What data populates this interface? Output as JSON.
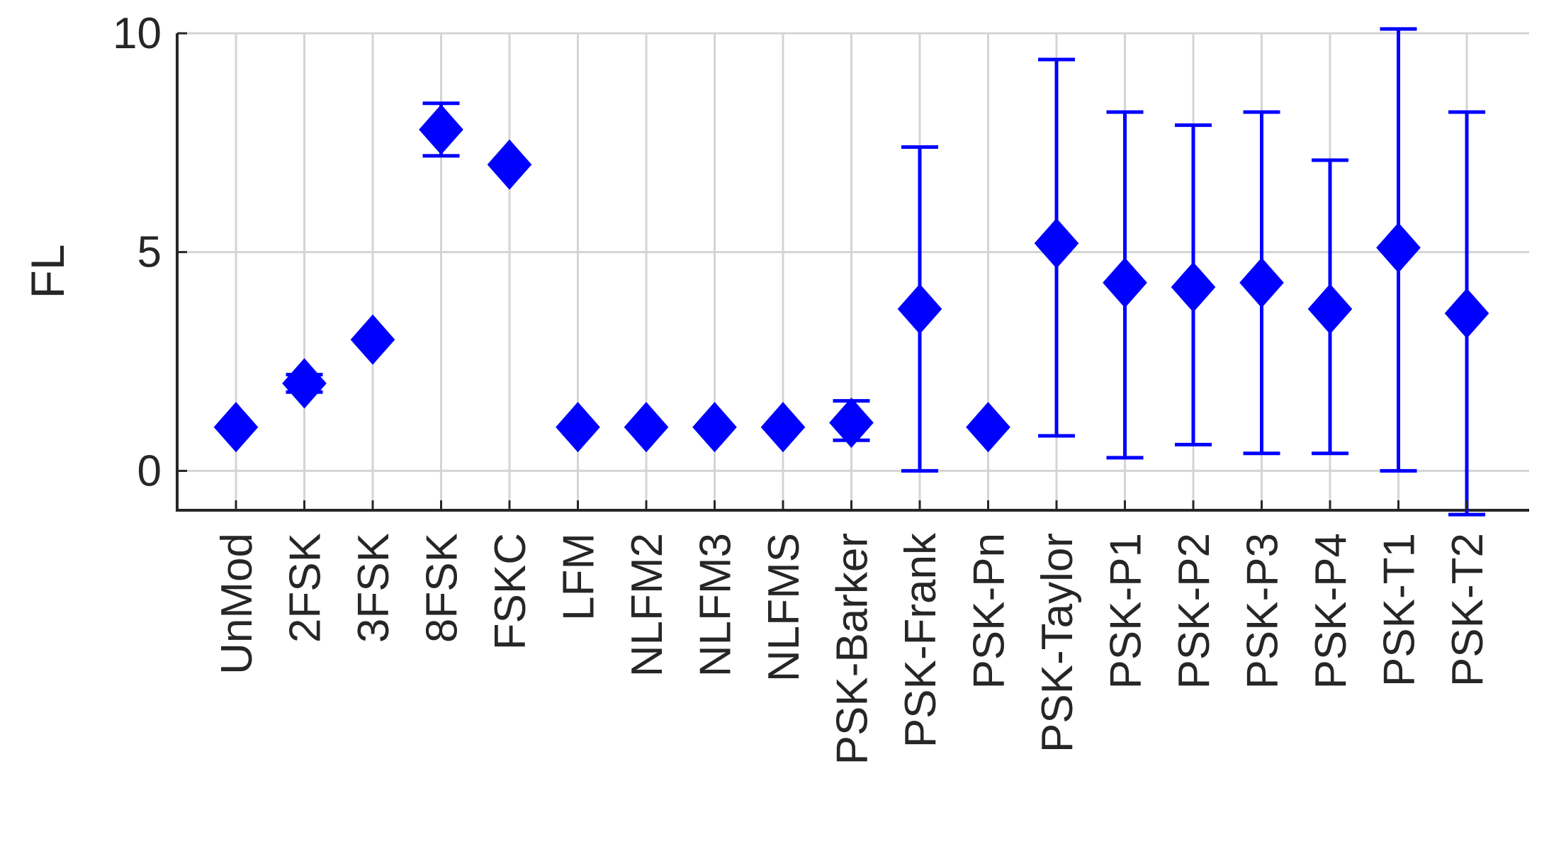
{
  "chart_data": {
    "type": "scatter",
    "ylabel": "FL",
    "xlabel": "",
    "title": "",
    "ylim": [
      -0.9,
      10
    ],
    "yticks": [
      0,
      5,
      10
    ],
    "grid": true,
    "marker": "diamond",
    "color": "#0000ff",
    "categories": [
      "UnMod",
      "2FSK",
      "3FSK",
      "8FSK",
      "FSKC",
      "LFM",
      "NLFM2",
      "NLFM3",
      "NLFMS",
      "PSK-Barker",
      "PSK-Frank",
      "PSK-Pn",
      "PSK-Taylor",
      "PSK-P1",
      "PSK-P2",
      "PSK-P3",
      "PSK-P4",
      "PSK-T1",
      "PSK-T2"
    ],
    "series": [
      {
        "values": [
          1.0,
          2.0,
          3.0,
          7.8,
          7.0,
          1.0,
          1.0,
          1.0,
          1.0,
          1.1,
          3.7,
          1.0,
          5.2,
          4.3,
          4.2,
          4.3,
          3.7,
          5.1,
          3.6
        ],
        "lower": [
          null,
          1.8,
          null,
          7.2,
          null,
          null,
          null,
          null,
          null,
          0.7,
          0.0,
          null,
          0.8,
          0.3,
          0.6,
          0.4,
          0.4,
          0.0,
          -1.0
        ],
        "upper": [
          null,
          2.2,
          null,
          8.4,
          null,
          null,
          null,
          null,
          null,
          1.6,
          7.4,
          null,
          9.4,
          8.2,
          7.9,
          8.2,
          7.1,
          10.1,
          8.2
        ]
      }
    ]
  }
}
